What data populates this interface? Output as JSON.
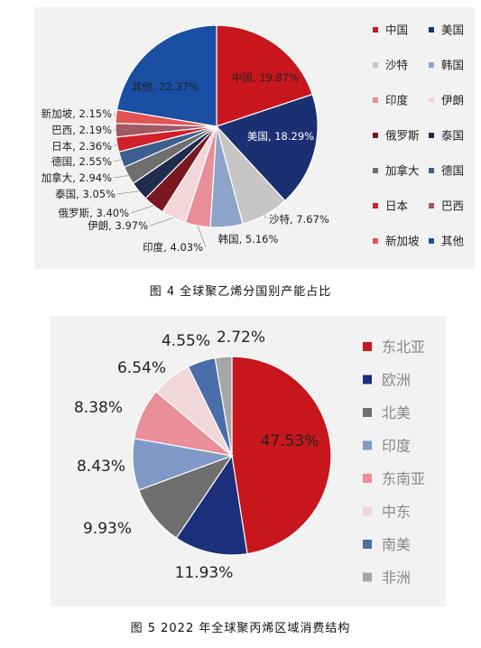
{
  "captions": {
    "fig4": "图 4  全球聚乙烯分国别产能占比",
    "fig5": "图 5   2022 年全球聚丙烯区域消费结构"
  },
  "chart_data": [
    {
      "type": "pie",
      "title": "",
      "legend_position": "right",
      "slices": [
        {
          "name": "中国",
          "value": 19.87,
          "label": "中国, 19.87%",
          "color": "#c8161d"
        },
        {
          "name": "美国",
          "value": 18.29,
          "label": "美国, 18.29%",
          "color": "#1b2f73"
        },
        {
          "name": "沙特",
          "value": 7.67,
          "label": "沙特, 7.67%",
          "color": "#c6c6c6"
        },
        {
          "name": "韩国",
          "value": 5.16,
          "label": "韩国, 5.16%",
          "color": "#8ea3c8"
        },
        {
          "name": "印度",
          "value": 4.03,
          "label": "印度, 4.03%",
          "color": "#e88f99"
        },
        {
          "name": "伊朗",
          "value": 3.97,
          "label": "伊朗, 3.97%",
          "color": "#f3d6da"
        },
        {
          "name": "俄罗斯",
          "value": 3.4,
          "label": "俄罗斯, 3.40%",
          "color": "#7a1820"
        },
        {
          "name": "泰国",
          "value": 3.05,
          "label": "泰国, 3.05%",
          "color": "#1f2c4d"
        },
        {
          "name": "加拿大",
          "value": 2.94,
          "label": "加拿大, 2.94%",
          "color": "#6f6f6f"
        },
        {
          "name": "德国",
          "value": 2.55,
          "label": "德国, 2.55%",
          "color": "#3d5f90"
        },
        {
          "name": "日本",
          "value": 2.36,
          "label": "日本, 2.36%",
          "color": "#d1202a"
        },
        {
          "name": "巴西",
          "value": 2.19,
          "label": "巴西, 2.19%",
          "color": "#a05a63"
        },
        {
          "name": "新加坡",
          "value": 2.15,
          "label": "新加坡, 2.15%",
          "color": "#e05454"
        },
        {
          "name": "其他",
          "value": 22.37,
          "label": "其他, 22.37%",
          "color": "#1a4ea3"
        }
      ]
    },
    {
      "type": "pie",
      "title": "",
      "legend_position": "right",
      "slices": [
        {
          "name": "东北亚",
          "value": 47.53,
          "label": "47.53%",
          "color": "#c8161d"
        },
        {
          "name": "欧洲",
          "value": 11.93,
          "label": "11.93%",
          "color": "#1b2f7a"
        },
        {
          "name": "北美",
          "value": 9.93,
          "label": "9.93%",
          "color": "#6f6f6f"
        },
        {
          "name": "印度",
          "value": 8.43,
          "label": "8.43%",
          "color": "#8199c6"
        },
        {
          "name": "东南亚",
          "value": 8.38,
          "label": "8.38%",
          "color": "#e88f99"
        },
        {
          "name": "中东",
          "value": 6.54,
          "label": "6.54%",
          "color": "#f0d8da"
        },
        {
          "name": "南美",
          "value": 4.55,
          "label": "4.55%",
          "color": "#4a6ea8"
        },
        {
          "name": "非洲",
          "value": 2.72,
          "label": "2.72%",
          "color": "#a5a5a5"
        }
      ]
    }
  ]
}
